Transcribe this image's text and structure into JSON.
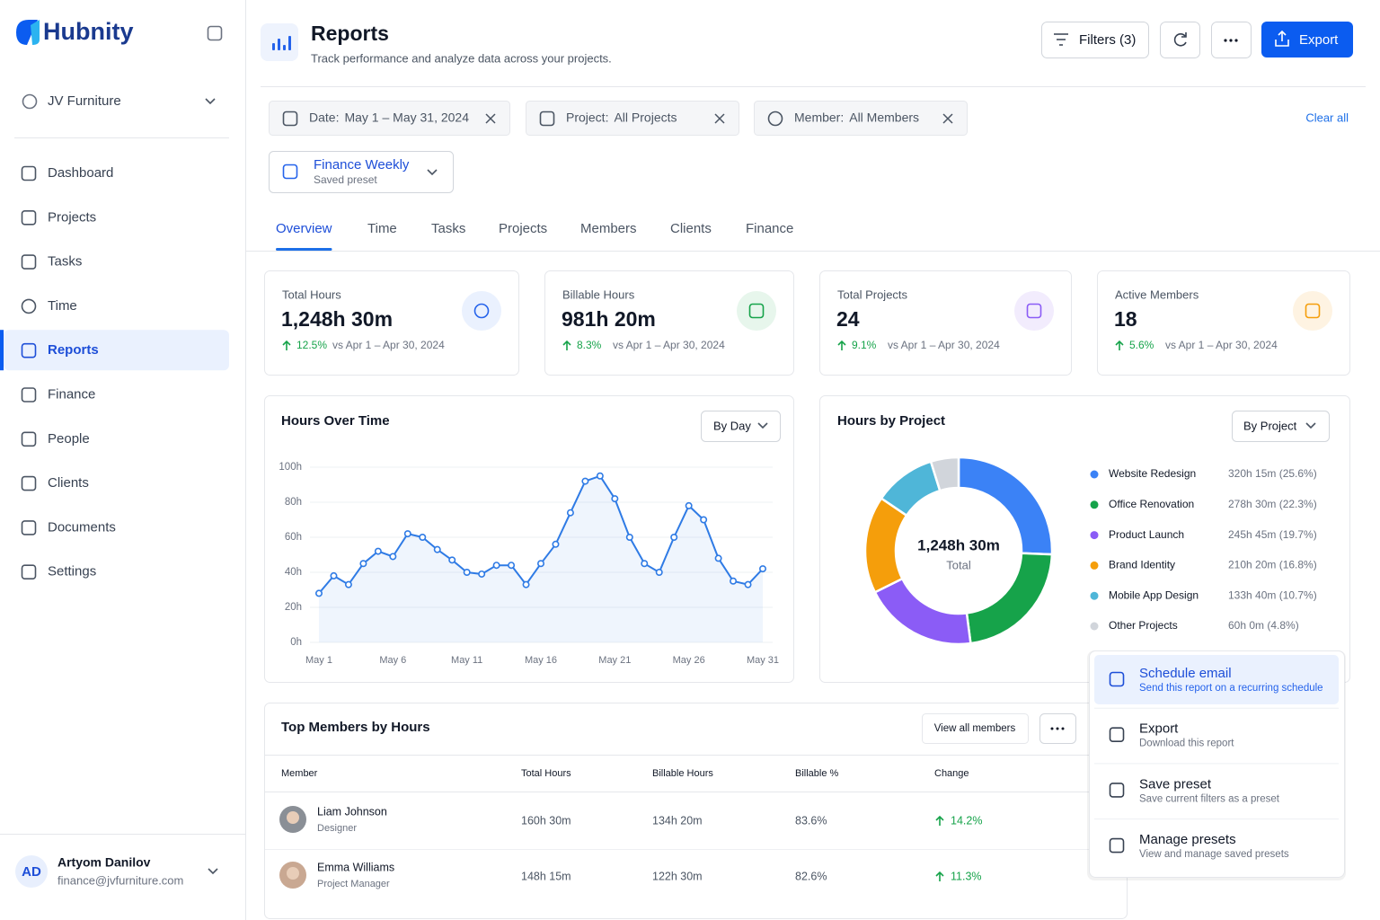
{
  "brand": "Hubnity",
  "workspace": "JV Furniture",
  "nav": [
    {
      "label": "Dashboard"
    },
    {
      "label": "Projects"
    },
    {
      "label": "Tasks"
    },
    {
      "label": "Time"
    },
    {
      "label": "Reports",
      "active": true
    },
    {
      "label": "Finance"
    },
    {
      "label": "People"
    },
    {
      "label": "Clients"
    },
    {
      "label": "Documents"
    },
    {
      "label": "Settings"
    }
  ],
  "user": {
    "initials": "AD",
    "name": "Artyom Danilov",
    "email": "finance@jvfurniture.com"
  },
  "header": {
    "title": "Reports",
    "subtitle": "Track performance and analyze data across your projects.",
    "filters_button": "Filters (3)",
    "export_button": "Export"
  },
  "filters": [
    {
      "key": "Date:",
      "value": "May 1 – May 31, 2024"
    },
    {
      "key": "Project:",
      "value": "All Projects"
    },
    {
      "key": "Member:",
      "value": "All Members"
    }
  ],
  "clear_all": "Clear all",
  "preset": {
    "name": "Finance Weekly",
    "caption": "Saved preset"
  },
  "tabs": [
    {
      "label": "Overview",
      "active": true
    },
    {
      "label": "Time"
    },
    {
      "label": "Tasks"
    },
    {
      "label": "Projects"
    },
    {
      "label": "Members"
    },
    {
      "label": "Clients"
    },
    {
      "label": "Finance"
    }
  ],
  "kpis": [
    {
      "label": "Total Hours",
      "value": "1,248h 30m",
      "change": "12.5%",
      "compare": "vs Apr 1 – Apr 30, 2024",
      "color": "#2563eb",
      "tint": "#eaf1fe"
    },
    {
      "label": "Billable Hours",
      "value": "981h 20m",
      "change": "8.3%",
      "compare": "vs Apr 1 – Apr 30, 2024",
      "color": "#16a34a",
      "tint": "#e7f6ec"
    },
    {
      "label": "Total Projects",
      "value": "24",
      "change": "9.1%",
      "compare": "vs Apr 1 – Apr 30, 2024",
      "color": "#8b5cf6",
      "tint": "#f2ecfd"
    },
    {
      "label": "Active Members",
      "value": "18",
      "change": "5.6%",
      "compare": "vs Apr 1 – Apr 30, 2024",
      "color": "#f59e0b",
      "tint": "#fef3e2"
    }
  ],
  "chart_data": [
    {
      "type": "line",
      "title": "Hours Over Time",
      "control": "By Day",
      "color": "#2f7be5",
      "categories": [
        "May 1",
        null,
        null,
        null,
        null,
        "May 6",
        null,
        null,
        null,
        null,
        "May 11",
        null,
        null,
        null,
        null,
        "May 16",
        null,
        null,
        null,
        null,
        "May 21",
        null,
        null,
        null,
        null,
        "May 26",
        null,
        null,
        null,
        null,
        "May 31"
      ],
      "values": [
        28,
        38,
        33,
        45,
        52,
        49,
        62,
        60,
        53,
        47,
        40,
        39,
        44,
        44,
        33,
        45,
        56,
        74,
        92,
        95,
        82,
        60,
        45,
        40,
        60,
        78,
        70,
        48,
        35,
        33,
        42
      ],
      "ylim": [
        0,
        100
      ],
      "yticks": [
        {
          "value": 0,
          "label": "0h"
        },
        {
          "value": 20,
          "label": "20h"
        },
        {
          "value": 40,
          "label": "40h"
        },
        {
          "value": 60,
          "label": "60h"
        },
        {
          "value": 80,
          "label": "80h"
        },
        {
          "value": 100,
          "label": "100h"
        }
      ],
      "grid": true
    },
    {
      "type": "pie",
      "title": "Hours by Project",
      "control": "By Project",
      "center_value": "1,248h 30m",
      "center_label": "Total",
      "categories": [
        "Website Redesign",
        "Office Renovation",
        "Product Launch",
        "Brand Identity",
        "Mobile App Design",
        "Other Projects"
      ],
      "values": [
        25.6,
        22.3,
        19.7,
        16.8,
        10.7,
        4.8
      ],
      "value_labels": [
        "320h 15m (25.6%)",
        "278h 30m (22.3%)",
        "245h 45m (19.7%)",
        "210h 20m (16.8%)",
        "133h 40m (10.7%)",
        "60h 0m (4.8%)"
      ],
      "colors": [
        "#3b82f6",
        "#16a34a",
        "#8b5cf6",
        "#f59e0b",
        "#4fb6d8",
        "#d1d5db"
      ]
    }
  ],
  "table": {
    "title": "Top Members by Hours",
    "view_all": "View all members",
    "columns": [
      "Member",
      "Total Hours",
      "Billable Hours",
      "Billable %",
      "Change"
    ],
    "rows": [
      {
        "name": "Liam Johnson",
        "role": "Designer",
        "total": "160h 30m",
        "billable": "134h 20m",
        "pct": "83.6%",
        "change": "14.2%"
      },
      {
        "name": "Emma Williams",
        "role": "Project Manager",
        "total": "148h 15m",
        "billable": "122h 30m",
        "pct": "82.6%",
        "change": "11.3%"
      }
    ]
  },
  "menu": [
    {
      "title": "Schedule email",
      "caption": "Send this report on a recurring schedule",
      "active": true
    },
    {
      "title": "Export",
      "caption": "Download this report"
    },
    {
      "title": "Save preset",
      "caption": "Save current filters as a preset"
    },
    {
      "title": "Manage presets",
      "caption": "View and manage saved presets"
    }
  ]
}
